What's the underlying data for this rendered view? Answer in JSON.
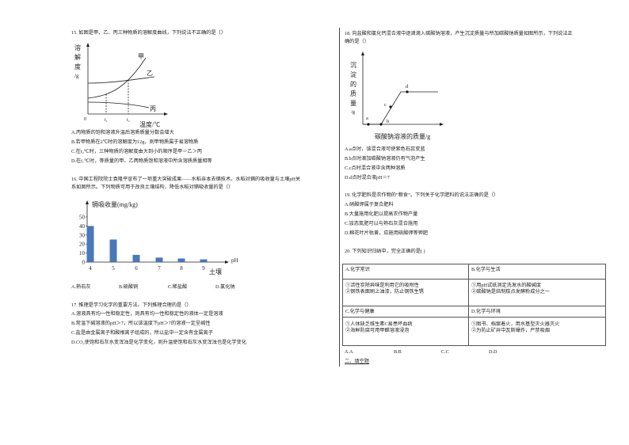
{
  "q15": {
    "stem": "15. 如图是甲、乙、丙三种物质的溶解度曲线，下列说法不正确的是（）",
    "graph": {
      "ylabel": [
        "溶",
        "解",
        "度",
        "/g"
      ],
      "xlabel": "温度/℃",
      "origin": "0",
      "t1": "t₁",
      "t2": "t₂",
      "curves": [
        "甲",
        "乙",
        "丙"
      ]
    },
    "options": [
      "A.丙物质的饱和溶液升温后溶质质量分数会增大",
      "B.若甲物质在2℃时的溶解度为12g，则甲物质属于易溶物质",
      "C.在t₂℃时，三种物质的溶解度由大到小的顺序是甲＝乙＞丙",
      "D.在t₁℃时，等质量的甲、乙两物质饱和溶液中所含溶质质量相等"
    ]
  },
  "q16": {
    "stem1": "16. 中国工程院院士袁隆平宣布了一项重大突破成果——水稻亲本去镉技术。水稻对镉的吸收量与土壤pH关",
    "stem2": "系如图所示。下列物质可用于改良土壤结构，降低水稻对镉吸收量的是（）",
    "options": [
      "A.熟石灰",
      "B.硫酸铜",
      "C.稀盐酸",
      "D.氯化钠"
    ]
  },
  "chart_data": {
    "type": "bar",
    "title": "",
    "ylabel": "镉吸收量(mg/kg)",
    "xlabel": "pH",
    "xlabel2": "土壤",
    "categories": [
      "4",
      "5",
      "6",
      "7",
      "8",
      "9"
    ],
    "values": [
      40,
      25,
      8,
      5,
      4,
      3
    ],
    "yticks": [
      "0",
      "10",
      "20",
      "30",
      "40",
      "50"
    ],
    "ylim": [
      0,
      50
    ],
    "bar_color": "#4a78b8"
  },
  "q17": {
    "stem": "17. 推理是学习化学的重要方法。下列推理合理的是（）",
    "options": [
      "A.溶液具有均一性和稳定性，则具有均一性和稳定性的液体一定是溶液",
      "B.常温下碱溶液的pH＞7，所以该温度下pH＞7的溶液一定呈碱性",
      "C.盐是由金属离子和酸根离子组成的，所以盐中一定含有金属离子",
      "D.CO₂使饱和石灰水变浑浊是化学变化，则升温使饱和石灰水变浑浊也是化学变化"
    ]
  },
  "q18": {
    "stem1": "18. 向盐酸和氯化钙混合液中逐滴滴入碳酸钠溶液，产生沉淀质量与所加碳酸钠质量如图所示，下列说法正",
    "stem2": "确的是（）",
    "graph": {
      "ylabel": [
        "沉",
        "淀",
        "的",
        "质",
        "量",
        "/g"
      ],
      "xlabel": "碳酸钠溶液的质量/g",
      "points": [
        "a",
        "b",
        "c",
        "d"
      ]
    },
    "options": [
      "A.a点时，该混合液可使紫色石蕊变蓝",
      "B.b点时滴加碳酸钠溶液仍有气泡产生",
      "C.c点时混合液中含两种溶质",
      "D.d点时混合液pH＝7"
    ]
  },
  "q19": {
    "stem": "19. 化学肥料是农作物的“粮食”。下列关于化学肥料的说法正确的是（）",
    "options": [
      "A.硝酸钾属于复合肥料",
      "B.大量施用化肥以提高农作物产量",
      "C.铵态氮肥可以与熟石灰混合施用",
      "D.棉花叶片枯黄，应施用硫酸钾等钾肥"
    ]
  },
  "q20": {
    "stem": "20. 下列知识归纳中，完全正确的是( )",
    "table": [
      {
        "head": "A.化学常识",
        "lines": [
          "①活性炭除异味是利用它的吸附性",
          "②钢铁表面刷上油漆，防止钢铁生锈"
        ]
      },
      {
        "head": "B.化学与生活",
        "lines": [
          "①用pH试纸测定洗发水的酸碱度",
          "②碳酸钠是焙制糕点发酵粉成分之一"
        ]
      },
      {
        "head": "C.化学与健康",
        "lines": [
          "①人体缺乏维生素C易患坏血病",
          "②海鲜防腐可用甲醛溶液浸泡"
        ]
      },
      {
        "head": "D.化学与环境",
        "lines": [
          "①图书、档案着火，用水基型灭火器灭火",
          "②为防止矿井中瓦斯爆炸，严禁吸烟"
        ]
      }
    ],
    "options": [
      "A.A",
      "B.B",
      "C.C",
      "D.D"
    ]
  },
  "section2": "二、填空题"
}
